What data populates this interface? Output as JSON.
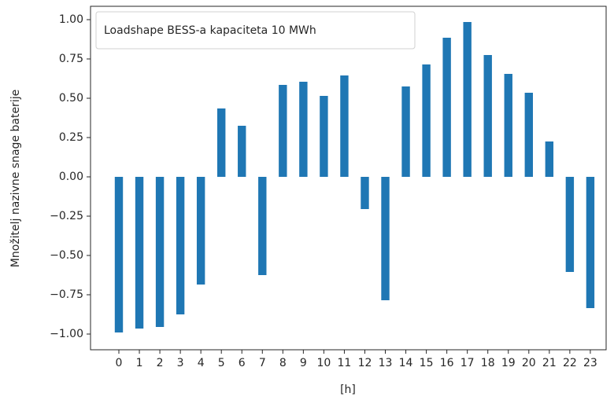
{
  "chart_data": {
    "type": "bar",
    "xlabel": "[h]",
    "ylabel": "Množitelj nazivne snage baterije",
    "categories": [
      "0",
      "1",
      "2",
      "3",
      "4",
      "5",
      "6",
      "7",
      "8",
      "9",
      "10",
      "11",
      "12",
      "13",
      "14",
      "15",
      "16",
      "17",
      "18",
      "19",
      "20",
      "21",
      "22",
      "23"
    ],
    "series": [
      {
        "name": "Loadshape BESS-a kapaciteta 10 MWh",
        "color": "#1f77b4",
        "values": [
          -0.99,
          -0.965,
          -0.955,
          -0.875,
          -0.685,
          0.435,
          0.325,
          -0.625,
          0.585,
          0.605,
          0.515,
          0.645,
          -0.205,
          -0.785,
          0.575,
          0.715,
          0.885,
          0.985,
          0.775,
          0.655,
          0.535,
          0.225,
          -0.605,
          -0.835
        ]
      }
    ],
    "ylim": [
      -1.1,
      1.085
    ],
    "yticks": [
      {
        "value": -1,
        "label": "−1.00"
      },
      {
        "value": -0.75,
        "label": "−0.75"
      },
      {
        "value": -0.5,
        "label": "−0.50"
      },
      {
        "value": -0.25,
        "label": "−0.25"
      },
      {
        "value": 0,
        "label": "0.00"
      },
      0.25,
      {
        "value": 0.5,
        "label": "0.50"
      },
      0.75,
      {
        "value": 1,
        "label": "1.00"
      }
    ],
    "legend": "upper left",
    "grid": false
  }
}
